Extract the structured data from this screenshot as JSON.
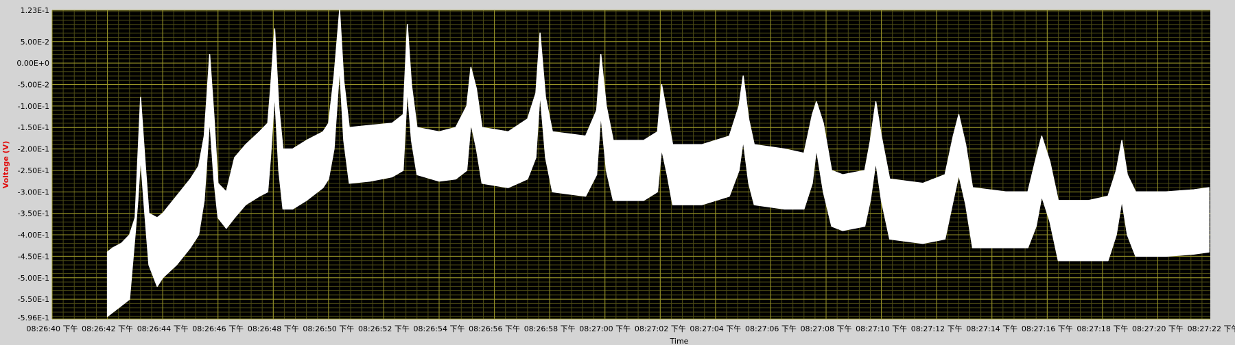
{
  "chart_data": {
    "type": "line",
    "title": "",
    "xlabel": "Time",
    "ylabel": "Voltage (V)",
    "ylim": [
      -0.596,
      0.123
    ],
    "y_ticks": [
      {
        "value": 0.123,
        "label": "1.23E-1"
      },
      {
        "value": 0.05,
        "label": "5.00E-2"
      },
      {
        "value": 0.0,
        "label": "0.00E+0"
      },
      {
        "value": -0.05,
        "label": "-5.00E-2"
      },
      {
        "value": -0.1,
        "label": "-1.00E-1"
      },
      {
        "value": -0.15,
        "label": "-1.50E-1"
      },
      {
        "value": -0.2,
        "label": "-2.00E-1"
      },
      {
        "value": -0.25,
        "label": "-2.50E-1"
      },
      {
        "value": -0.3,
        "label": "-3.00E-1"
      },
      {
        "value": -0.35,
        "label": "-3.50E-1"
      },
      {
        "value": -0.4,
        "label": "-4.00E-1"
      },
      {
        "value": -0.45,
        "label": "-4.50E-1"
      },
      {
        "value": -0.5,
        "label": "-5.00E-1"
      },
      {
        "value": -0.55,
        "label": "-5.50E-1"
      },
      {
        "value": -0.596,
        "label": "-5.96E-1"
      }
    ],
    "x_ticks": [
      "08:26:40 下午",
      "08:26:42 下午",
      "08:26:44 下午",
      "08:26:46 下午",
      "08:26:48 下午",
      "08:26:50 下午",
      "08:26:52 下午",
      "08:26:54 下午",
      "08:26:56 下午",
      "08:26:58 下午",
      "08:27:00 下午",
      "08:27:02 下午",
      "08:27:04 下午",
      "08:27:06 下午",
      "08:27:08 下午",
      "08:27:10 下午",
      "08:27:12 下午",
      "08:27:14 下午",
      "08:27:16 下午",
      "08:27:18 下午",
      "08:27:20 下午",
      "08:27:22 下午"
    ],
    "x_tick_seconds": [
      40,
      42,
      44,
      46,
      48,
      50,
      52,
      54,
      56,
      58,
      60,
      62,
      64,
      66,
      68,
      70,
      72,
      74,
      76,
      78,
      80,
      82
    ],
    "xlim_seconds": [
      40,
      81.9
    ],
    "grid": true,
    "series": [
      {
        "color": "#ffffff",
        "band": true,
        "points": [
          {
            "t": 42.0,
            "upper": -0.44,
            "lower": -0.59
          },
          {
            "t": 42.2,
            "upper": -0.43,
            "lower": -0.58
          },
          {
            "t": 42.5,
            "upper": -0.42,
            "lower": -0.565
          },
          {
            "t": 42.8,
            "upper": -0.4,
            "lower": -0.55
          },
          {
            "t": 43.0,
            "upper": -0.36,
            "lower": -0.4
          },
          {
            "t": 43.1,
            "upper": -0.22,
            "lower": -0.32
          },
          {
            "t": 43.2,
            "upper": -0.08,
            "lower": -0.22
          },
          {
            "t": 43.35,
            "upper": -0.22,
            "lower": -0.35
          },
          {
            "t": 43.5,
            "upper": -0.35,
            "lower": -0.47
          },
          {
            "t": 43.8,
            "upper": -0.36,
            "lower": -0.52
          },
          {
            "t": 44.0,
            "upper": -0.35,
            "lower": -0.5
          },
          {
            "t": 44.5,
            "upper": -0.31,
            "lower": -0.47
          },
          {
            "t": 45.0,
            "upper": -0.27,
            "lower": -0.43
          },
          {
            "t": 45.3,
            "upper": -0.24,
            "lower": -0.4
          },
          {
            "t": 45.5,
            "upper": -0.17,
            "lower": -0.32
          },
          {
            "t": 45.7,
            "upper": 0.02,
            "lower": -0.13
          },
          {
            "t": 45.85,
            "upper": -0.12,
            "lower": -0.27
          },
          {
            "t": 46.0,
            "upper": -0.28,
            "lower": -0.36
          },
          {
            "t": 46.3,
            "upper": -0.3,
            "lower": -0.385
          },
          {
            "t": 46.6,
            "upper": -0.22,
            "lower": -0.36
          },
          {
            "t": 47.0,
            "upper": -0.19,
            "lower": -0.33
          },
          {
            "t": 47.5,
            "upper": -0.16,
            "lower": -0.31
          },
          {
            "t": 47.8,
            "upper": -0.14,
            "lower": -0.3
          },
          {
            "t": 47.9,
            "upper": -0.06,
            "lower": -0.22
          },
          {
            "t": 48.05,
            "upper": 0.08,
            "lower": -0.07
          },
          {
            "t": 48.2,
            "upper": -0.1,
            "lower": -0.25
          },
          {
            "t": 48.35,
            "upper": -0.2,
            "lower": -0.34
          },
          {
            "t": 48.7,
            "upper": -0.2,
            "lower": -0.34
          },
          {
            "t": 49.2,
            "upper": -0.18,
            "lower": -0.32
          },
          {
            "t": 49.8,
            "upper": -0.16,
            "lower": -0.29
          },
          {
            "t": 50.0,
            "upper": -0.14,
            "lower": -0.27
          },
          {
            "t": 50.2,
            "upper": -0.03,
            "lower": -0.2
          },
          {
            "t": 50.4,
            "upper": 0.123,
            "lower": -0.01
          },
          {
            "t": 50.55,
            "upper": -0.04,
            "lower": -0.18
          },
          {
            "t": 50.75,
            "upper": -0.15,
            "lower": -0.28
          },
          {
            "t": 51.5,
            "upper": -0.145,
            "lower": -0.275
          },
          {
            "t": 52.3,
            "upper": -0.14,
            "lower": -0.265
          },
          {
            "t": 52.7,
            "upper": -0.12,
            "lower": -0.25
          },
          {
            "t": 52.85,
            "upper": 0.09,
            "lower": -0.06
          },
          {
            "t": 53.0,
            "upper": -0.05,
            "lower": -0.18
          },
          {
            "t": 53.2,
            "upper": -0.15,
            "lower": -0.26
          },
          {
            "t": 54.0,
            "upper": -0.16,
            "lower": -0.275
          },
          {
            "t": 54.6,
            "upper": -0.15,
            "lower": -0.27
          },
          {
            "t": 55.0,
            "upper": -0.1,
            "lower": -0.25
          },
          {
            "t": 55.15,
            "upper": -0.01,
            "lower": -0.14
          },
          {
            "t": 55.35,
            "upper": -0.06,
            "lower": -0.2
          },
          {
            "t": 55.55,
            "upper": -0.15,
            "lower": -0.28
          },
          {
            "t": 56.5,
            "upper": -0.16,
            "lower": -0.29
          },
          {
            "t": 57.2,
            "upper": -0.13,
            "lower": -0.27
          },
          {
            "t": 57.5,
            "upper": -0.07,
            "lower": -0.22
          },
          {
            "t": 57.65,
            "upper": 0.07,
            "lower": -0.07
          },
          {
            "t": 57.85,
            "upper": -0.08,
            "lower": -0.22
          },
          {
            "t": 58.1,
            "upper": -0.16,
            "lower": -0.3
          },
          {
            "t": 59.3,
            "upper": -0.17,
            "lower": -0.31
          },
          {
            "t": 59.7,
            "upper": -0.11,
            "lower": -0.26
          },
          {
            "t": 59.85,
            "upper": 0.02,
            "lower": -0.12
          },
          {
            "t": 60.05,
            "upper": -0.1,
            "lower": -0.25
          },
          {
            "t": 60.3,
            "upper": -0.18,
            "lower": -0.32
          },
          {
            "t": 61.4,
            "upper": -0.18,
            "lower": -0.32
          },
          {
            "t": 61.9,
            "upper": -0.16,
            "lower": -0.3
          },
          {
            "t": 62.05,
            "upper": -0.05,
            "lower": -0.2
          },
          {
            "t": 62.25,
            "upper": -0.12,
            "lower": -0.26
          },
          {
            "t": 62.45,
            "upper": -0.19,
            "lower": -0.33
          },
          {
            "t": 63.5,
            "upper": -0.19,
            "lower": -0.33
          },
          {
            "t": 64.5,
            "upper": -0.17,
            "lower": -0.31
          },
          {
            "t": 64.85,
            "upper": -0.1,
            "lower": -0.25
          },
          {
            "t": 65.0,
            "upper": -0.03,
            "lower": -0.18
          },
          {
            "t": 65.2,
            "upper": -0.13,
            "lower": -0.28
          },
          {
            "t": 65.4,
            "upper": -0.19,
            "lower": -0.33
          },
          {
            "t": 66.5,
            "upper": -0.2,
            "lower": -0.34
          },
          {
            "t": 67.2,
            "upper": -0.21,
            "lower": -0.34
          },
          {
            "t": 67.5,
            "upper": -0.12,
            "lower": -0.28
          },
          {
            "t": 67.65,
            "upper": -0.09,
            "lower": -0.2
          },
          {
            "t": 67.9,
            "upper": -0.14,
            "lower": -0.3
          },
          {
            "t": 68.2,
            "upper": -0.25,
            "lower": -0.38
          },
          {
            "t": 68.6,
            "upper": -0.26,
            "lower": -0.39
          },
          {
            "t": 69.4,
            "upper": -0.25,
            "lower": -0.38
          },
          {
            "t": 69.6,
            "upper": -0.18,
            "lower": -0.32
          },
          {
            "t": 69.8,
            "upper": -0.09,
            "lower": -0.23
          },
          {
            "t": 70.0,
            "upper": -0.17,
            "lower": -0.32
          },
          {
            "t": 70.3,
            "upper": -0.27,
            "lower": -0.41
          },
          {
            "t": 71.5,
            "upper": -0.28,
            "lower": -0.42
          },
          {
            "t": 72.3,
            "upper": -0.26,
            "lower": -0.41
          },
          {
            "t": 72.6,
            "upper": -0.17,
            "lower": -0.32
          },
          {
            "t": 72.8,
            "upper": -0.12,
            "lower": -0.26
          },
          {
            "t": 73.05,
            "upper": -0.19,
            "lower": -0.33
          },
          {
            "t": 73.3,
            "upper": -0.29,
            "lower": -0.43
          },
          {
            "t": 74.5,
            "upper": -0.3,
            "lower": -0.43
          },
          {
            "t": 75.3,
            "upper": -0.3,
            "lower": -0.43
          },
          {
            "t": 75.6,
            "upper": -0.22,
            "lower": -0.38
          },
          {
            "t": 75.8,
            "upper": -0.17,
            "lower": -0.31
          },
          {
            "t": 76.1,
            "upper": -0.23,
            "lower": -0.37
          },
          {
            "t": 76.4,
            "upper": -0.32,
            "lower": -0.46
          },
          {
            "t": 77.5,
            "upper": -0.32,
            "lower": -0.46
          },
          {
            "t": 78.2,
            "upper": -0.31,
            "lower": -0.46
          },
          {
            "t": 78.5,
            "upper": -0.25,
            "lower": -0.4
          },
          {
            "t": 78.7,
            "upper": -0.18,
            "lower": -0.32
          },
          {
            "t": 78.9,
            "upper": -0.26,
            "lower": -0.4
          },
          {
            "t": 79.2,
            "upper": -0.3,
            "lower": -0.45
          },
          {
            "t": 80.3,
            "upper": -0.3,
            "lower": -0.45
          },
          {
            "t": 81.3,
            "upper": -0.295,
            "lower": -0.445
          },
          {
            "t": 81.85,
            "upper": -0.29,
            "lower": -0.44
          }
        ]
      }
    ]
  }
}
